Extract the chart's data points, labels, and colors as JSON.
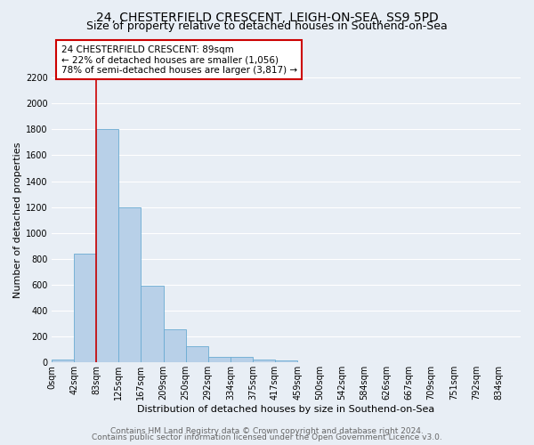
{
  "title1": "24, CHESTERFIELD CRESCENT, LEIGH-ON-SEA, SS9 5PD",
  "title2": "Size of property relative to detached houses in Southend-on-Sea",
  "xlabel": "Distribution of detached houses by size in Southend-on-Sea",
  "ylabel": "Number of detached properties",
  "bin_labels": [
    "0sqm",
    "42sqm",
    "83sqm",
    "125sqm",
    "167sqm",
    "209sqm",
    "250sqm",
    "292sqm",
    "334sqm",
    "375sqm",
    "417sqm",
    "459sqm",
    "500sqm",
    "542sqm",
    "584sqm",
    "626sqm",
    "667sqm",
    "709sqm",
    "751sqm",
    "792sqm",
    "834sqm"
  ],
  "bar_values": [
    25,
    840,
    1800,
    1200,
    590,
    255,
    125,
    45,
    45,
    25,
    15,
    0,
    0,
    0,
    0,
    0,
    0,
    0,
    0,
    0
  ],
  "bar_color": "#b8d0e8",
  "bar_edge_color": "#6aabd2",
  "vline_x": 2,
  "vline_color": "#cc0000",
  "annotation_line1": "24 CHESTERFIELD CRESCENT: 89sqm",
  "annotation_line2": "← 22% of detached houses are smaller (1,056)",
  "annotation_line3": "78% of semi-detached houses are larger (3,817) →",
  "annotation_box_color": "#cc0000",
  "ylim": [
    0,
    2200
  ],
  "yticks": [
    0,
    200,
    400,
    600,
    800,
    1000,
    1200,
    1400,
    1600,
    1800,
    2000,
    2200
  ],
  "footer1": "Contains HM Land Registry data © Crown copyright and database right 2024.",
  "footer2": "Contains public sector information licensed under the Open Government Licence v3.0.",
  "bg_color": "#e8eef5",
  "plot_bg_color": "#e8eef5",
  "grid_color": "#ffffff",
  "title_fontsize": 10,
  "subtitle_fontsize": 9,
  "axis_label_fontsize": 8,
  "tick_fontsize": 7,
  "annotation_fontsize": 7.5,
  "footer_fontsize": 6.5
}
